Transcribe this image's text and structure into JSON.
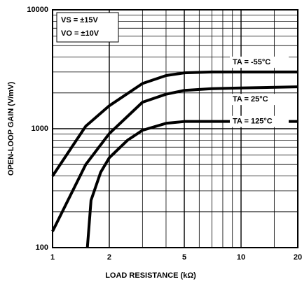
{
  "chart_data": {
    "type": "line",
    "xlabel": "LOAD RESISTANCE (kΩ)",
    "ylabel": "OPEN-LOOP GAIN (V/mV)",
    "annotations": [
      "VS = ±15V",
      "VO = ±10V"
    ],
    "log_x": true,
    "log_y": true,
    "grid": true,
    "xlim": [
      1,
      20
    ],
    "ylim": [
      100,
      10000
    ],
    "xticks": [
      1,
      2,
      5,
      10,
      20
    ],
    "yticks": [
      100,
      1000,
      10000
    ],
    "xminor": [
      3,
      4,
      6,
      7,
      8,
      9,
      15
    ],
    "yminor": [
      200,
      300,
      400,
      500,
      600,
      700,
      800,
      900,
      2000,
      3000,
      4000,
      5000,
      6000,
      7000,
      8000,
      9000
    ],
    "series": [
      {
        "name": "TA = -55°C",
        "color": "#000000",
        "x": [
          1,
          1.5,
          2,
          3,
          4,
          5,
          7,
          10,
          20
        ],
        "values": [
          400,
          1050,
          1560,
          2400,
          2800,
          2950,
          3000,
          3000,
          3000
        ]
      },
      {
        "name": "TA = 25°C",
        "color": "#000000",
        "x": [
          1,
          1.5,
          2,
          3,
          4,
          5,
          7,
          10,
          20
        ],
        "values": [
          137,
          500,
          910,
          1670,
          1950,
          2100,
          2170,
          2200,
          2250
        ]
      },
      {
        "name": "TA = 125°C",
        "color": "#000000",
        "x": [
          1.53,
          1.6,
          1.8,
          2,
          2.5,
          3,
          4,
          5,
          10,
          20
        ],
        "values": [
          100,
          250,
          430,
          570,
          800,
          970,
          1110,
          1150,
          1150,
          1150
        ]
      }
    ]
  }
}
